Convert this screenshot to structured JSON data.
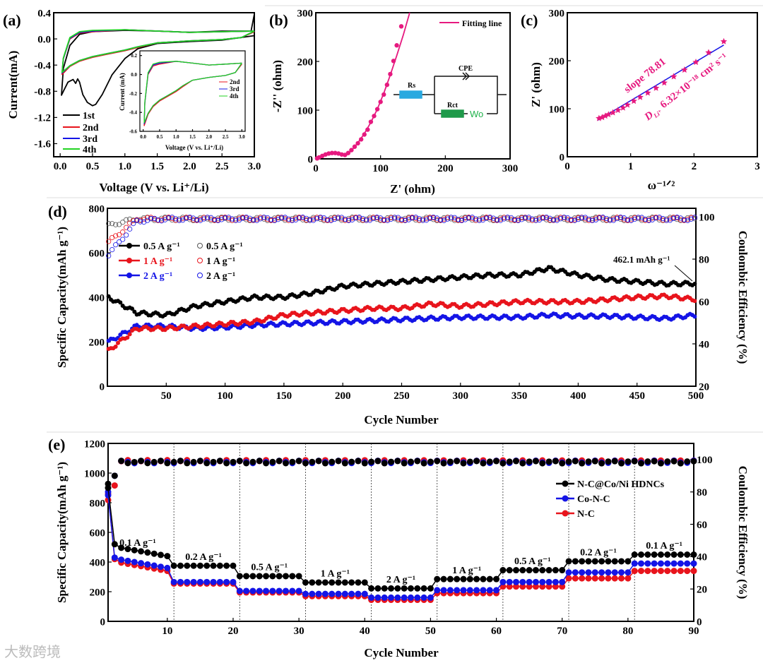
{
  "watermark": "大数跨境",
  "colors": {
    "black": "#000000",
    "red": "#e8141c",
    "blue": "#1414e6",
    "green": "#22d322",
    "magenta": "#e6197f",
    "orange": "#f0a020",
    "circuit_rs": "#29a9e0",
    "circuit_rct": "#1f9a4a"
  },
  "chart_data": [
    {
      "panel": "(a)",
      "type": "line",
      "xlabel": "Voltage (V vs. Li⁺/Li)",
      "ylabel": "Current(mA)",
      "xlim": [
        -0.1,
        3.0
      ],
      "ylim": [
        -1.8,
        0.4
      ],
      "xticks": [
        0.0,
        0.5,
        1.0,
        1.5,
        2.0,
        2.5,
        3.0
      ],
      "yticks": [
        0.4,
        0.0,
        -0.4,
        -0.8,
        -1.2,
        -1.6
      ],
      "legend_position": "bottom-left",
      "series": [
        {
          "name": "1st",
          "color": "#000000",
          "points": [
            [
              3.0,
              0.05
            ],
            [
              2.5,
              -0.02
            ],
            [
              2.0,
              -0.04
            ],
            [
              1.5,
              -0.07
            ],
            [
              1.2,
              -0.15
            ],
            [
              1.0,
              -0.3
            ],
            [
              0.8,
              -0.55
            ],
            [
              0.65,
              -0.85
            ],
            [
              0.55,
              -1.0
            ],
            [
              0.5,
              -1.02
            ],
            [
              0.42,
              -0.97
            ],
            [
              0.35,
              -0.85
            ],
            [
              0.3,
              -0.66
            ],
            [
              0.27,
              -0.61
            ],
            [
              0.24,
              -0.68
            ],
            [
              0.2,
              -0.62
            ],
            [
              0.12,
              -0.66
            ],
            [
              0.05,
              -0.8
            ],
            [
              0.02,
              -0.86
            ],
            [
              0.05,
              -0.45
            ],
            [
              0.15,
              -0.1
            ],
            [
              0.3,
              0.07
            ],
            [
              0.5,
              0.11
            ],
            [
              1.0,
              0.13
            ],
            [
              1.5,
              0.12
            ],
            [
              2.0,
              0.1
            ],
            [
              2.5,
              0.12
            ],
            [
              2.95,
              0.12
            ],
            [
              3.0,
              0.38
            ]
          ]
        },
        {
          "name": "2nd",
          "color": "#e8141c",
          "points": [
            [
              3.0,
              0.11
            ],
            [
              2.8,
              0.02
            ],
            [
              2.5,
              -0.01
            ],
            [
              2.0,
              -0.03
            ],
            [
              1.5,
              -0.06
            ],
            [
              1.2,
              -0.13
            ],
            [
              1.0,
              -0.18
            ],
            [
              0.7,
              -0.24
            ],
            [
              0.5,
              -0.28
            ],
            [
              0.3,
              -0.34
            ],
            [
              0.15,
              -0.42
            ],
            [
              0.03,
              -0.54
            ],
            [
              0.05,
              -0.3
            ],
            [
              0.15,
              0.0
            ],
            [
              0.3,
              0.09
            ],
            [
              0.5,
              0.11
            ],
            [
              1.0,
              0.14
            ],
            [
              1.5,
              0.12
            ],
            [
              2.0,
              0.1
            ],
            [
              2.5,
              0.11
            ],
            [
              3.0,
              0.12
            ]
          ]
        },
        {
          "name": "3rd",
          "color": "#1414e6",
          "points": [
            [
              3.0,
              0.12
            ],
            [
              2.8,
              0.02
            ],
            [
              2.5,
              -0.01
            ],
            [
              2.0,
              -0.03
            ],
            [
              1.5,
              -0.06
            ],
            [
              1.2,
              -0.12
            ],
            [
              1.0,
              -0.17
            ],
            [
              0.7,
              -0.23
            ],
            [
              0.5,
              -0.27
            ],
            [
              0.3,
              -0.33
            ],
            [
              0.15,
              -0.41
            ],
            [
              0.03,
              -0.52
            ],
            [
              0.05,
              -0.3
            ],
            [
              0.15,
              0.01
            ],
            [
              0.3,
              0.1
            ],
            [
              0.5,
              0.12
            ],
            [
              1.0,
              0.14
            ],
            [
              1.5,
              0.12
            ],
            [
              2.0,
              0.1
            ],
            [
              2.5,
              0.11
            ],
            [
              3.0,
              0.12
            ]
          ]
        },
        {
          "name": "4th",
          "color": "#22d322",
          "points": [
            [
              3.0,
              0.12
            ],
            [
              2.8,
              0.02
            ],
            [
              2.5,
              -0.01
            ],
            [
              2.0,
              -0.03
            ],
            [
              1.5,
              -0.06
            ],
            [
              1.2,
              -0.12
            ],
            [
              1.0,
              -0.17
            ],
            [
              0.7,
              -0.23
            ],
            [
              0.5,
              -0.27
            ],
            [
              0.3,
              -0.33
            ],
            [
              0.15,
              -0.41
            ],
            [
              0.03,
              -0.51
            ],
            [
              0.05,
              -0.29
            ],
            [
              0.15,
              0.02
            ],
            [
              0.3,
              0.11
            ],
            [
              0.5,
              0.13
            ],
            [
              1.0,
              0.14
            ],
            [
              1.5,
              0.12
            ],
            [
              2.0,
              0.1
            ],
            [
              2.5,
              0.11
            ],
            [
              3.0,
              0.12
            ]
          ]
        }
      ],
      "inset": {
        "xlabel": "Voltage (V vs. Li⁺/Li)",
        "ylabel": "Current (mA)",
        "xlim": [
          -0.1,
          3.1
        ],
        "ylim": [
          -0.6,
          0.25
        ],
        "xticks": [
          0.0,
          0.5,
          1.0,
          1.5,
          2.0,
          2.5,
          3.0
        ],
        "yticks": [
          0.2,
          0.0,
          -0.2,
          -0.4,
          -0.6
        ],
        "series_names": [
          "2nd",
          "3rd",
          "4th"
        ]
      }
    },
    {
      "panel": "(b)",
      "type": "scatter",
      "xlabel": "Z' (ohm)",
      "ylabel": "-Z'' (ohm)",
      "xlim": [
        0,
        300
      ],
      "ylim": [
        0,
        300
      ],
      "xticks": [
        0,
        100,
        200,
        300
      ],
      "yticks": [
        0,
        100,
        200,
        300
      ],
      "legend": "Fitting line",
      "legend_position": "top-right",
      "points": [
        [
          2,
          1
        ],
        [
          5,
          3
        ],
        [
          10,
          6
        ],
        [
          15,
          9
        ],
        [
          20,
          11
        ],
        [
          25,
          12
        ],
        [
          30,
          12
        ],
        [
          35,
          11
        ],
        [
          40,
          9
        ],
        [
          45,
          8
        ],
        [
          50,
          12
        ],
        [
          55,
          18
        ],
        [
          60,
          25
        ],
        [
          65,
          32
        ],
        [
          70,
          40
        ],
        [
          75,
          50
        ],
        [
          80,
          60
        ],
        [
          85,
          76
        ],
        [
          90,
          88
        ],
        [
          95,
          102
        ],
        [
          100,
          117
        ],
        [
          105,
          132
        ],
        [
          110,
          152
        ],
        [
          115,
          174
        ],
        [
          120,
          201
        ],
        [
          125,
          233
        ],
        [
          132,
          272
        ]
      ],
      "fit": [
        [
          0,
          0
        ],
        [
          10,
          7
        ],
        [
          20,
          11
        ],
        [
          30,
          11
        ],
        [
          40,
          8
        ],
        [
          48,
          8
        ],
        [
          55,
          17
        ],
        [
          65,
          33
        ],
        [
          75,
          52
        ],
        [
          85,
          75
        ],
        [
          95,
          102
        ],
        [
          105,
          135
        ],
        [
          115,
          172
        ],
        [
          125,
          212
        ],
        [
          135,
          254
        ],
        [
          145,
          300
        ]
      ],
      "circuit": {
        "labels": [
          "Rs",
          "CPE",
          "Rct",
          "Wo"
        ]
      }
    },
    {
      "panel": "(c)",
      "type": "scatter",
      "xlabel": "ω⁻¹ᐟ²",
      "ylabel": "Z' (ohm)",
      "xlim": [
        0,
        3
      ],
      "ylim": [
        0,
        300
      ],
      "xticks": [
        0,
        1,
        2,
        3
      ],
      "yticks": [
        0,
        100,
        200,
        300
      ],
      "points": [
        [
          0.5,
          80
        ],
        [
          0.55,
          82
        ],
        [
          0.6,
          85
        ],
        [
          0.65,
          88
        ],
        [
          0.72,
          92
        ],
        [
          0.8,
          97
        ],
        [
          0.88,
          102
        ],
        [
          0.95,
          108
        ],
        [
          1.05,
          116
        ],
        [
          1.15,
          124
        ],
        [
          1.27,
          133
        ],
        [
          1.4,
          143
        ],
        [
          1.53,
          154
        ],
        [
          1.68,
          167
        ],
        [
          1.85,
          181
        ],
        [
          2.03,
          197
        ],
        [
          2.23,
          217
        ],
        [
          2.47,
          240
        ]
      ],
      "fit": {
        "slope": 78.81,
        "intercept": 38,
        "x_range": [
          0.48,
          2.47
        ]
      },
      "annotations": {
        "slope": "slope 78.81",
        "diffusion_symbol": "D",
        "diffusion_sub": "Li⁺",
        "diffusion_value": "6.32×10⁻¹⁸ cm² s⁻¹"
      }
    },
    {
      "panel": "(d)",
      "type": "scatter",
      "xlabel": "Cycle Number",
      "ylabel": "Specific Capacity(mAh g⁻¹)",
      "y2label": "Coulombic Efficiency (%)",
      "xlim": [
        0,
        500
      ],
      "ylim": [
        0,
        800
      ],
      "y2lim": [
        20,
        104
      ],
      "xticks": [
        50,
        100,
        150,
        200,
        250,
        300,
        350,
        400,
        450,
        500
      ],
      "yticks": [
        0,
        200,
        400,
        600,
        800
      ],
      "y2ticks": [
        20,
        40,
        60,
        80,
        100
      ],
      "legend_position": "top-left",
      "annotation": "462.1 mAh g⁻¹",
      "x": [
        1,
        25,
        50,
        75,
        100,
        125,
        150,
        175,
        200,
        225,
        250,
        275,
        300,
        325,
        350,
        375,
        400,
        425,
        450,
        475,
        500
      ],
      "series": [
        {
          "name": "0.5 A g⁻¹",
          "color": "#000000",
          "capacity": [
            400,
            330,
            320,
            360,
            380,
            400,
            400,
            420,
            450,
            460,
            470,
            480,
            490,
            500,
            500,
            530,
            500,
            480,
            470,
            460,
            462
          ],
          "ce": [
            96,
            99,
            99,
            99,
            99,
            99,
            99,
            99,
            99,
            99,
            99,
            99,
            99,
            99,
            99,
            99,
            99,
            99,
            99,
            99,
            99
          ]
        },
        {
          "name": "1 A g⁻¹",
          "color": "#e8141c",
          "capacity": [
            160,
            260,
            260,
            270,
            280,
            290,
            320,
            330,
            340,
            350,
            350,
            370,
            360,
            370,
            380,
            380,
            380,
            390,
            400,
            405,
            390
          ],
          "ce": [
            88,
            99,
            99,
            99,
            99,
            99,
            99,
            99,
            99,
            99,
            99,
            99,
            99,
            99,
            99,
            99,
            99,
            99,
            99,
            99,
            99
          ]
        },
        {
          "name": "2 A g⁻¹",
          "color": "#1414e6",
          "capacity": [
            200,
            270,
            270,
            260,
            265,
            275,
            280,
            285,
            290,
            295,
            300,
            305,
            310,
            310,
            310,
            320,
            315,
            315,
            310,
            305,
            320
          ],
          "ce": [
            82,
            98,
            99,
            99,
            99,
            99,
            99,
            99,
            99,
            99,
            99,
            99,
            99,
            99,
            99,
            99,
            99,
            99,
            99,
            99,
            99
          ]
        }
      ]
    },
    {
      "panel": "(e)",
      "type": "scatter",
      "xlabel": "Cycle Number",
      "ylabel": "Specific Capacity(mAh g⁻¹)",
      "y2label": "Coulombic Efficiency (%)",
      "xlim": [
        1,
        90
      ],
      "ylim": [
        0,
        1200
      ],
      "y2lim": [
        0,
        110
      ],
      "xticks": [
        10,
        20,
        30,
        40,
        50,
        60,
        70,
        80,
        90
      ],
      "yticks": [
        0,
        200,
        400,
        600,
        800,
        1000,
        1200
      ],
      "y2ticks": [
        0,
        20,
        40,
        60,
        80,
        100
      ],
      "legend_position": "right",
      "segments": [
        {
          "start": 1,
          "end": 10,
          "rate": "0.1 A g⁻¹"
        },
        {
          "start": 11,
          "end": 20,
          "rate": "0.2 A g⁻¹"
        },
        {
          "start": 21,
          "end": 30,
          "rate": "0.5 A g⁻¹"
        },
        {
          "start": 31,
          "end": 40,
          "rate": "1 A g⁻¹"
        },
        {
          "start": 41,
          "end": 50,
          "rate": "2 A g⁻¹"
        },
        {
          "start": 51,
          "end": 60,
          "rate": "1 A g⁻¹"
        },
        {
          "start": 61,
          "end": 70,
          "rate": "0.5 A g⁻¹"
        },
        {
          "start": 71,
          "end": 80,
          "rate": "0.2 A g⁻¹"
        },
        {
          "start": 81,
          "end": 90,
          "rate": "0.1 A g⁻¹"
        }
      ],
      "series": [
        {
          "name": "N-C@Co/Ni HDNCs",
          "color": "#000000",
          "first_cycles": [
            900,
            520
          ],
          "segment_capacity": [
            440,
            375,
            305,
            262,
            222,
            285,
            345,
            405,
            450
          ],
          "ce": 98.5,
          "ce_first_cycles": [
            85,
            90
          ]
        },
        {
          "name": "Co-N-C",
          "color": "#1414e6",
          "first_cycles": [
            850,
            430
          ],
          "segment_capacity": [
            360,
            265,
            205,
            185,
            160,
            210,
            265,
            330,
            390
          ],
          "ce": 98.5,
          "ce_first_cycles": [
            80,
            90
          ]
        },
        {
          "name": "N-C",
          "color": "#e8141c",
          "first_cycles": [
            860,
            420
          ],
          "segment_capacity": [
            340,
            255,
            195,
            170,
            145,
            190,
            235,
            290,
            340
          ],
          "ce": 99,
          "ce_first_cycles": [
            75,
            84
          ]
        }
      ]
    }
  ]
}
